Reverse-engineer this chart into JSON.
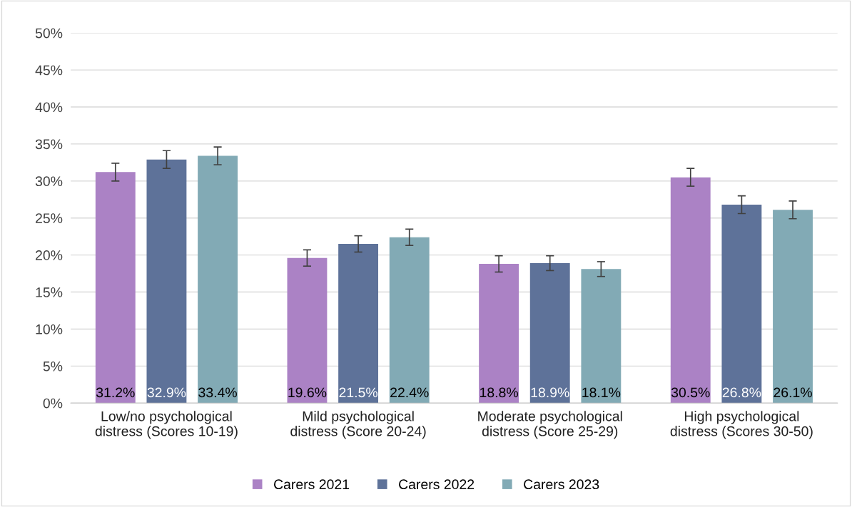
{
  "chart_data": {
    "type": "bar",
    "categories": [
      "Low/no psychological\ndistress (Scores 10-19)",
      "Mild psychological\ndistress (Score 20-24)",
      "Moderate psychological\ndistress (Score 25-29)",
      "High psychological\ndistress (Scores 30-50)"
    ],
    "series": [
      {
        "name": "Carers 2021",
        "color": "#ab82c5",
        "values": [
          31.2,
          19.6,
          18.8,
          30.5
        ],
        "errors": [
          1.2,
          1.1,
          1.1,
          1.2
        ],
        "value_labels": [
          "31.2%",
          "19.6%",
          "18.8%",
          "30.5%"
        ]
      },
      {
        "name": "Carers 2022",
        "color": "#5e7299",
        "values": [
          32.9,
          21.5,
          18.9,
          26.8
        ],
        "errors": [
          1.2,
          1.1,
          1.0,
          1.2
        ],
        "value_labels": [
          "32.9%",
          "21.5%",
          "18.9%",
          "26.8%"
        ]
      },
      {
        "name": "Carers 2023",
        "color": "#82aab5",
        "values": [
          33.4,
          22.4,
          18.1,
          26.1
        ],
        "errors": [
          1.2,
          1.1,
          1.0,
          1.2
        ],
        "value_labels": [
          "33.4%",
          "22.4%",
          "18.1%",
          "26.1%"
        ]
      }
    ],
    "ylim": [
      0,
      50
    ],
    "yticks": [
      {
        "value": 0,
        "label": "0%"
      },
      {
        "value": 5,
        "label": "5%"
      },
      {
        "value": 10,
        "label": "10%"
      },
      {
        "value": 15,
        "label": "15%"
      },
      {
        "value": 20,
        "label": "20%"
      },
      {
        "value": 25,
        "label": "25%"
      },
      {
        "value": 30,
        "label": "30%"
      },
      {
        "value": 35,
        "label": "35%"
      },
      {
        "value": 40,
        "label": "40%"
      },
      {
        "value": 45,
        "label": "45%"
      },
      {
        "value": 50,
        "label": "50%"
      }
    ],
    "grid": "y",
    "legend": "bottom"
  }
}
